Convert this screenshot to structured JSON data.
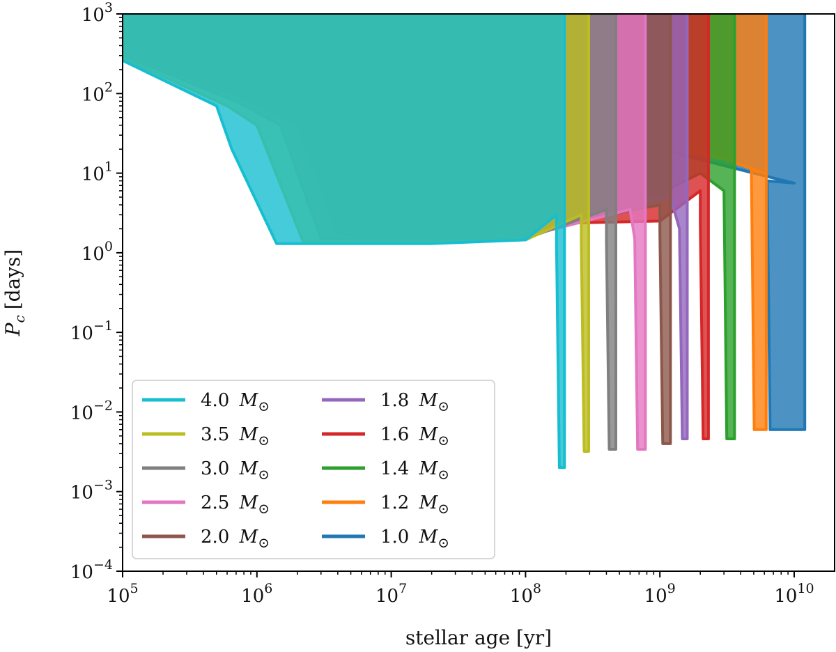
{
  "chart_data": {
    "type": "area",
    "xlabel": "stellar age [yr]",
    "ylabel_main": "P",
    "ylabel_sub": "c",
    "ylabel_unit": "[days]",
    "xscale": "log",
    "yscale": "log",
    "xlim": [
      100000,
      20000000000
    ],
    "ylim": [
      0.0001,
      1000
    ],
    "xticks": [
      {
        "value": 100000,
        "base": "10",
        "exp": "5"
      },
      {
        "value": 1000000,
        "base": "10",
        "exp": "6"
      },
      {
        "value": 10000000,
        "base": "10",
        "exp": "7"
      },
      {
        "value": 100000000,
        "base": "10",
        "exp": "8"
      },
      {
        "value": 1000000000,
        "base": "10",
        "exp": "9"
      },
      {
        "value": 10000000000,
        "base": "10",
        "exp": "10"
      }
    ],
    "yticks": [
      {
        "value": 0.0001,
        "base": "10",
        "exp": "−4"
      },
      {
        "value": 0.001,
        "base": "10",
        "exp": "−3"
      },
      {
        "value": 0.01,
        "base": "10",
        "exp": "−2"
      },
      {
        "value": 0.1,
        "base": "10",
        "exp": "−1"
      },
      {
        "value": 1,
        "base": "10",
        "exp": "0"
      },
      {
        "value": 10,
        "base": "10",
        "exp": "1"
      },
      {
        "value": 100,
        "base": "10",
        "exp": "2"
      },
      {
        "value": 1000,
        "base": "10",
        "exp": "3"
      }
    ],
    "legend_unit": "M",
    "legend_unit_sub": "⊙",
    "legend_position": "lower-left",
    "series": [
      {
        "mass": "1.0",
        "color": "#1f77b4",
        "t_drop": 6300000000.0,
        "t_end": 12000000000.0,
        "p_min": 0.006,
        "p_flat": 8,
        "upper": [
          [
            100000.0,
            430
          ],
          [
            1000000.0,
            210
          ],
          [
            20000000.0,
            32
          ],
          [
            100000000.0,
            28
          ],
          [
            1000000000.0,
            20
          ],
          [
            5000000000.0,
            10
          ],
          [
            10000000000.0,
            7.5
          ]
        ]
      },
      {
        "mass": "1.2",
        "color": "#ff7f0e",
        "t_drop": 4800000000.0,
        "t_end": 6200000000.0,
        "p_min": 0.006,
        "p_flat": 11,
        "upper": [
          [
            100000.0,
            420
          ],
          [
            1000000.0,
            190
          ],
          [
            18000000.0,
            25
          ],
          [
            100000000.0,
            27
          ],
          [
            1000000000.0,
            21
          ],
          [
            3000000000.0,
            15
          ],
          [
            6000000000.0,
            10
          ]
        ]
      },
      {
        "mass": "1.4",
        "color": "#2ca02c",
        "t_drop": 3000000000.0,
        "t_end": 3600000000.0,
        "p_min": 0.0046,
        "p_flat": 6,
        "upper": [
          [
            100000.0,
            400
          ],
          [
            1000000.0,
            160
          ],
          [
            10000000.0,
            30
          ],
          [
            13000000.0,
            12
          ],
          [
            20000000.0,
            8
          ],
          [
            100000000.0,
            6
          ],
          [
            1000000000.0,
            5.5
          ],
          [
            2000000000.0,
            10
          ]
        ]
      },
      {
        "mass": "1.6",
        "color": "#d62728",
        "t_drop": 2000000000.0,
        "t_end": 2300000000.0,
        "p_min": 0.0046,
        "p_flat": 2.3,
        "upper": [
          [
            100000.0,
            380
          ],
          [
            1000000.0,
            130
          ],
          [
            6000000.0,
            40
          ],
          [
            9000000.0,
            3.5
          ],
          [
            20000000.0,
            2.4
          ],
          [
            100000000.0,
            2.3
          ],
          [
            1000000000.0,
            2.5
          ],
          [
            2000000000.0,
            6
          ]
        ]
      },
      {
        "mass": "1.8",
        "color": "#9467bd",
        "t_drop": 1400000000.0,
        "t_end": 1600000000.0,
        "p_min": 0.0046,
        "p_flat": 2.0,
        "upper": [
          [
            100000.0,
            360
          ],
          [
            1000000.0,
            110
          ],
          [
            4000000.0,
            40
          ],
          [
            6000000.0,
            2.5
          ],
          [
            20000000.0,
            2.0
          ],
          [
            100000000.0,
            2.0
          ],
          [
            1200000000.0,
            5
          ]
        ]
      },
      {
        "mass": "2.0",
        "color": "#8c564b",
        "t_drop": 1000000000.0,
        "t_end": 1200000000.0,
        "p_min": 0.004,
        "p_flat": 1.8,
        "upper": [
          [
            100000.0,
            340
          ],
          [
            1000000.0,
            90
          ],
          [
            3000000.0,
            40
          ],
          [
            5000000.0,
            2.2
          ],
          [
            20000000.0,
            1.8
          ],
          [
            100000000.0,
            1.9
          ],
          [
            1000000000.0,
            4
          ]
        ]
      },
      {
        "mass": "2.5",
        "color": "#e377c2",
        "t_drop": 650000000.0,
        "t_end": 780000000.0,
        "p_min": 0.0034,
        "p_flat": 1.5,
        "upper": [
          [
            100000.0,
            320
          ],
          [
            1000000.0,
            75
          ],
          [
            2000000.0,
            40
          ],
          [
            4000000.0,
            1.7
          ],
          [
            20000000.0,
            1.5
          ],
          [
            100000000.0,
            1.6
          ],
          [
            600000000.0,
            3.5
          ]
        ]
      },
      {
        "mass": "3.0",
        "color": "#7f7f7f",
        "t_drop": 400000000.0,
        "t_end": 470000000.0,
        "p_min": 0.0034,
        "p_flat": 1.4,
        "upper": [
          [
            100000.0,
            300
          ],
          [
            700000.0,
            80
          ],
          [
            1500000.0,
            40
          ],
          [
            3000000.0,
            1.5
          ],
          [
            20000000.0,
            1.4
          ],
          [
            100000000.0,
            1.5
          ],
          [
            400000000.0,
            3.5
          ]
        ]
      },
      {
        "mass": "3.5",
        "color": "#bcbd22",
        "t_drop": 260000000.0,
        "t_end": 295000000.0,
        "p_min": 0.0032,
        "p_flat": 1.35,
        "upper": [
          [
            100000.0,
            280
          ],
          [
            600000.0,
            70
          ],
          [
            1000000.0,
            40
          ],
          [
            2200000.0,
            1.4
          ],
          [
            20000000.0,
            1.35
          ],
          [
            100000000.0,
            1.45
          ],
          [
            260000000.0,
            3
          ]
        ]
      },
      {
        "mass": "4.0",
        "color": "#17becf",
        "t_drop": 170000000.0,
        "t_end": 195000000.0,
        "p_min": 0.002,
        "p_flat": 1.3,
        "upper": [
          [
            100000.0,
            260
          ],
          [
            500000.0,
            70
          ],
          [
            650000.0,
            20
          ],
          [
            1400000.0,
            1.3
          ],
          [
            20000000.0,
            1.3
          ],
          [
            100000000.0,
            1.45
          ],
          [
            170000000.0,
            3
          ]
        ]
      }
    ]
  }
}
